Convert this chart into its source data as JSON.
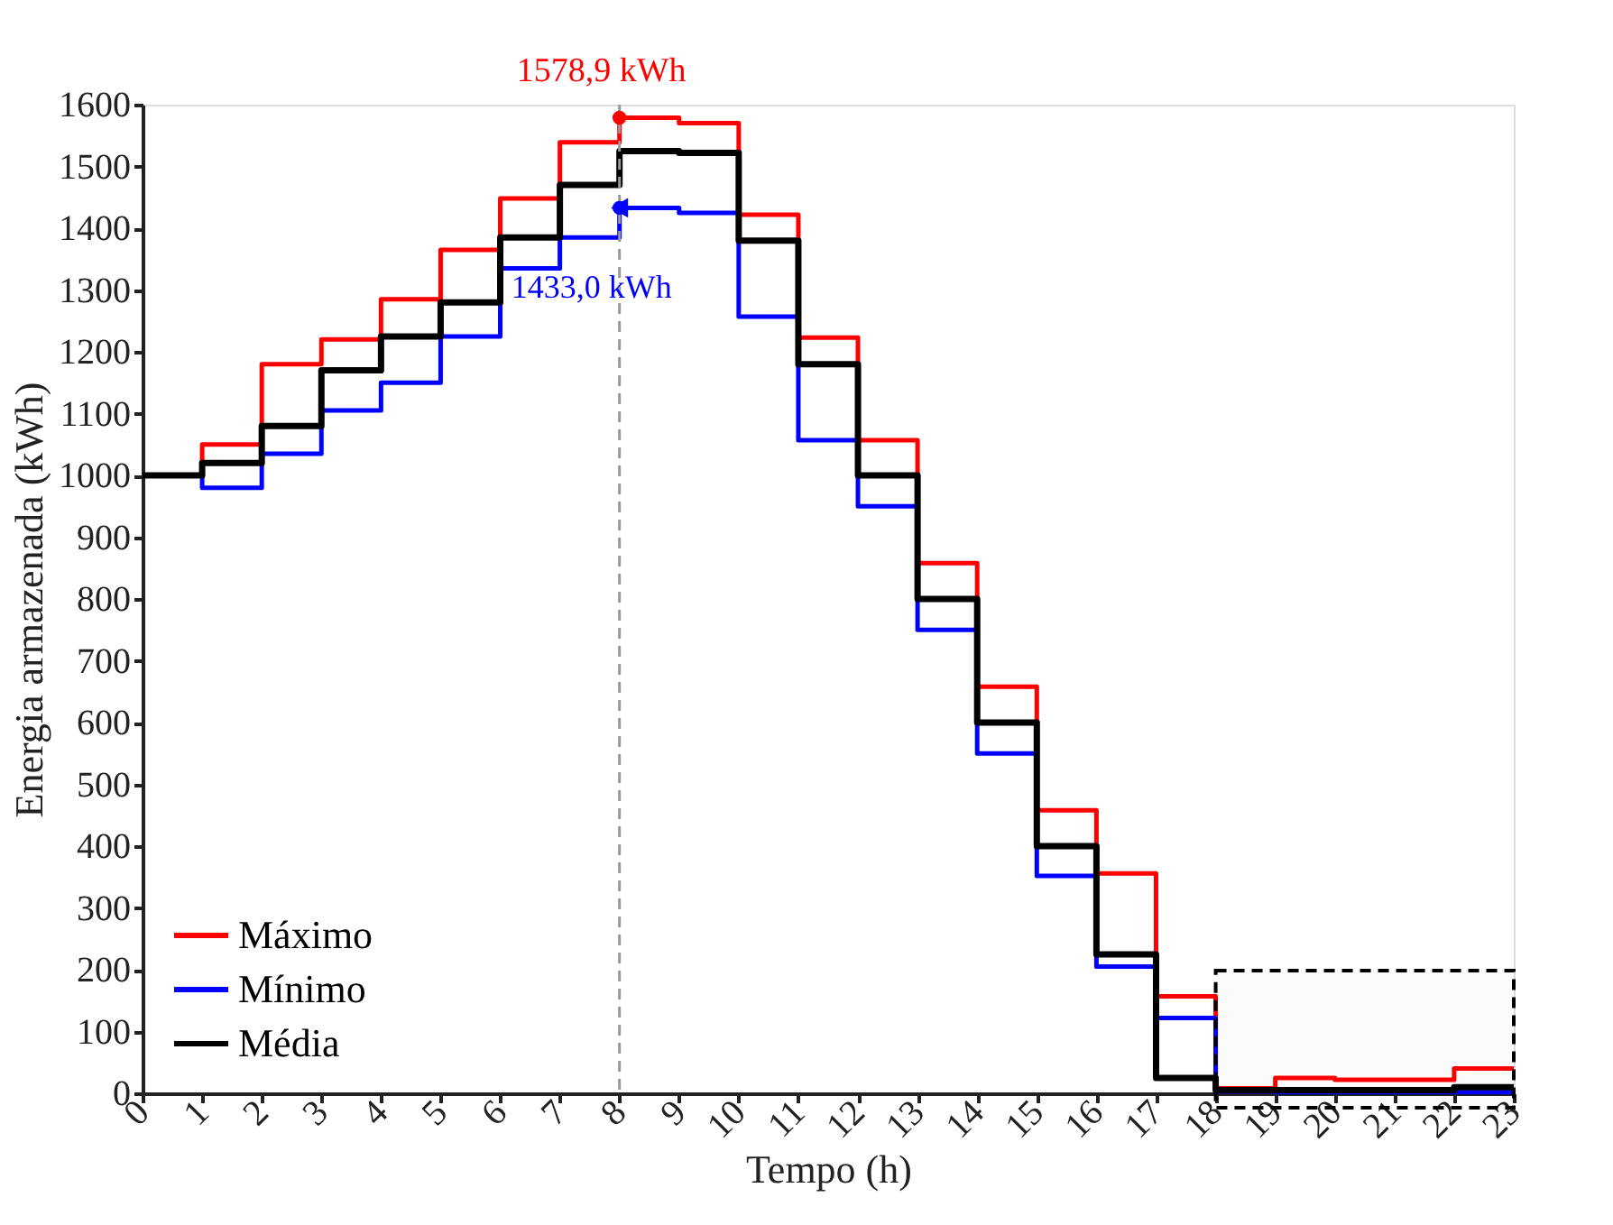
{
  "chart_data": {
    "type": "step",
    "xlabel": "Tempo (h)",
    "ylabel": "Energia armazenada (kWh)",
    "x": [
      0,
      1,
      2,
      3,
      4,
      5,
      6,
      7,
      8,
      9,
      10,
      11,
      12,
      13,
      14,
      15,
      16,
      17,
      18,
      19,
      20,
      21,
      22,
      23
    ],
    "series": [
      {
        "name": "Máximo",
        "color": "#ff0000",
        "values": [
          1000,
          1050,
          1180,
          1220,
          1285,
          1365,
          1448,
          1539,
          1578.9,
          1570,
          1422,
          1223,
          1057,
          858,
          658,
          458,
          356,
          157,
          8,
          25,
          22,
          22,
          40,
          40
        ]
      },
      {
        "name": "Mínimo",
        "color": "#0000ff",
        "values": [
          1000,
          980,
          1035,
          1105,
          1150,
          1225,
          1335,
          1385,
          1433,
          1425,
          1257,
          1057,
          950,
          750,
          550,
          352,
          205,
          122,
          3,
          2,
          2,
          2,
          2,
          2
        ]
      },
      {
        "name": "Média",
        "color": "#000000",
        "values": [
          1000,
          1020,
          1080,
          1170,
          1225,
          1280,
          1385,
          1470,
          1525,
          1522,
          1380,
          1180,
          1000,
          800,
          600,
          400,
          225,
          25,
          5,
          5,
          5,
          5,
          10,
          10
        ]
      }
    ],
    "xlim": [
      0,
      23
    ],
    "xticks": [
      0,
      1,
      2,
      3,
      4,
      5,
      6,
      7,
      8,
      9,
      10,
      11,
      12,
      13,
      14,
      15,
      16,
      17,
      18,
      19,
      20,
      21,
      22,
      23
    ],
    "ylim": [
      0,
      1600
    ],
    "yticks": [
      0,
      100,
      200,
      300,
      400,
      500,
      600,
      700,
      800,
      900,
      1000,
      1100,
      1200,
      1300,
      1400,
      1500,
      1600
    ],
    "annotations": [
      {
        "text": "1578,9 kWh",
        "x": 8,
        "y": 1578.9
      },
      {
        "text": "1433,0 kWh",
        "x": 8,
        "y": 1433
      }
    ],
    "ref_lines": [
      {
        "axis": "x",
        "value": 8,
        "color": "#999999",
        "line_style": "dashed"
      }
    ],
    "bands": [
      {
        "axis": "x",
        "from": 18,
        "to": 23,
        "color": "#000000"
      }
    ],
    "legend": "bottom left",
    "grid": false,
    "line_style": "solid",
    "marker": "none"
  }
}
